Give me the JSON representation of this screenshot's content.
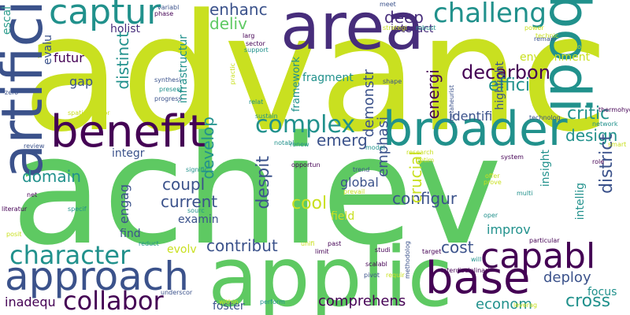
{
  "palette": {
    "background": "#ffffff",
    "lime": "#c9e020",
    "green": "#5ec962",
    "teal": "#21918c",
    "blue": "#3b528b",
    "purple": "#440154",
    "dark_purple": "#472d7b",
    "aqua": "#2c9c8c",
    "yellow": "#e8e419"
  },
  "words": [
    {
      "text": "advanc",
      "color": "#c9e020"
    },
    {
      "text": "achiev",
      "color": "#5ec962"
    },
    {
      "text": "applic",
      "color": "#5ec962"
    },
    {
      "text": "area",
      "color": "#472d7b"
    },
    {
      "text": "artifici",
      "color": "#3b528b"
    },
    {
      "text": "bodi",
      "color": "#21918c"
    },
    {
      "text": "broader",
      "color": "#21918c"
    },
    {
      "text": "benefit",
      "color": "#440154"
    },
    {
      "text": "captur",
      "color": "#21918c"
    },
    {
      "text": "challeng",
      "color": "#21918c"
    },
    {
      "text": "approach",
      "color": "#3b528b"
    },
    {
      "text": "base",
      "color": "#440154"
    },
    {
      "text": "capabl",
      "color": "#440154"
    },
    {
      "text": "character",
      "color": "#21918c"
    },
    {
      "text": "collabor",
      "color": "#440154"
    },
    {
      "text": "complex",
      "color": "#21918c"
    },
    {
      "text": "escal",
      "color": "#2c9c8c"
    },
    {
      "text": "enhanc",
      "color": "#3b528b"
    },
    {
      "text": "deliv",
      "color": "#5ec962"
    },
    {
      "text": "deep",
      "color": "#472d7b"
    },
    {
      "text": "holist",
      "color": "#472d7b"
    },
    {
      "text": "interact",
      "color": "#472d7b"
    },
    {
      "text": "decarbon",
      "color": "#440154"
    },
    {
      "text": "effici",
      "color": "#21918c"
    },
    {
      "text": "environment",
      "color": "#c9e020"
    },
    {
      "text": "distinct",
      "color": "#21918c"
    },
    {
      "text": "fragment",
      "color": "#21918c"
    },
    {
      "text": "gap",
      "color": "#3b528b"
    },
    {
      "text": "futur",
      "color": "#440154"
    },
    {
      "text": "evalu",
      "color": "#3b528b"
    },
    {
      "text": "critic",
      "color": "#21918c"
    },
    {
      "text": "design",
      "color": "#21918c"
    },
    {
      "text": "emerg",
      "color": "#3b528b"
    },
    {
      "text": "develop",
      "color": "#21918c"
    },
    {
      "text": "domain",
      "color": "#21918c"
    },
    {
      "text": "engag",
      "color": "#3b528b"
    },
    {
      "text": "coupl",
      "color": "#3b528b"
    },
    {
      "text": "current",
      "color": "#3b528b"
    },
    {
      "text": "despit",
      "color": "#3b528b"
    },
    {
      "text": "cool",
      "color": "#c9e020"
    },
    {
      "text": "configur",
      "color": "#3b528b"
    },
    {
      "text": "crucial",
      "color": "#c9e020"
    },
    {
      "text": "emphasi",
      "color": "#3b528b"
    },
    {
      "text": "demonstr",
      "color": "#3b528b"
    },
    {
      "text": "energi",
      "color": "#440154"
    },
    {
      "text": "identifi",
      "color": "#3b528b"
    },
    {
      "text": "highlight",
      "color": "#3b528b"
    },
    {
      "text": "district",
      "color": "#3b528b"
    },
    {
      "text": "intellig",
      "color": "#21918c"
    },
    {
      "text": "insight",
      "color": "#21918c"
    },
    {
      "text": "global",
      "color": "#3b528b"
    },
    {
      "text": "integr",
      "color": "#3b528b"
    },
    {
      "text": "examin",
      "color": "#3b528b"
    },
    {
      "text": "find",
      "color": "#3b528b"
    },
    {
      "text": "field",
      "color": "#c9e020"
    },
    {
      "text": "improv",
      "color": "#21918c"
    },
    {
      "text": "cost",
      "color": "#3b528b"
    },
    {
      "text": "contribut",
      "color": "#3b528b"
    },
    {
      "text": "evolv",
      "color": "#c9e020"
    },
    {
      "text": "deploy",
      "color": "#3b528b"
    },
    {
      "text": "focus",
      "color": "#21918c"
    },
    {
      "text": "cross",
      "color": "#21918c"
    },
    {
      "text": "econom",
      "color": "#21918c"
    },
    {
      "text": "comprehens",
      "color": "#440154"
    },
    {
      "text": "inadequ",
      "color": "#440154"
    },
    {
      "text": "foster",
      "color": "#3b528b"
    },
    {
      "text": "infrastructur",
      "color": "#21918c"
    },
    {
      "text": "framework",
      "color": "#21918c"
    },
    {
      "text": "relat",
      "color": "#21918c"
    },
    {
      "text": "sustain",
      "color": "#21918c"
    },
    {
      "text": "renew",
      "color": "#21918c"
    },
    {
      "text": "model",
      "color": "#21918c"
    },
    {
      "text": "research",
      "color": "#c9e020"
    },
    {
      "text": "optim",
      "color": "#c9e020"
    },
    {
      "text": "trend",
      "color": "#3b528b"
    },
    {
      "text": "opportun",
      "color": "#440154"
    },
    {
      "text": "prevail",
      "color": "#c9e020"
    },
    {
      "text": "system",
      "color": "#440154"
    },
    {
      "text": "offer",
      "color": "#c9e020"
    },
    {
      "text": "prove",
      "color": "#c9e020"
    },
    {
      "text": "role",
      "color": "#440154"
    },
    {
      "text": "multi",
      "color": "#21918c"
    },
    {
      "text": "oper",
      "color": "#21918c"
    },
    {
      "text": "remain",
      "color": "#3b528b"
    },
    {
      "text": "variabl",
      "color": "#3b528b"
    },
    {
      "text": "phase",
      "color": "#440154"
    },
    {
      "text": "larg",
      "color": "#440154"
    },
    {
      "text": "sector",
      "color": "#440154"
    },
    {
      "text": "support",
      "color": "#21918c"
    },
    {
      "text": "meet",
      "color": "#3b528b"
    },
    {
      "text": "strategi",
      "color": "#c9e020"
    },
    {
      "text": "robust",
      "color": "#21918c"
    },
    {
      "text": "power",
      "color": "#c9e020"
    },
    {
      "text": "technic",
      "color": "#c9e020"
    },
    {
      "text": "toward",
      "color": "#c9e020"
    },
    {
      "text": "metaheurist",
      "color": "#3b528b"
    },
    {
      "text": "technolog",
      "color": "#3b528b"
    },
    {
      "text": "thermohydraul",
      "color": "#440154"
    },
    {
      "text": "network",
      "color": "#21918c"
    },
    {
      "text": "smart",
      "color": "#c9e020"
    },
    {
      "text": "synthesi",
      "color": "#3b528b"
    },
    {
      "text": "present",
      "color": "#21918c"
    },
    {
      "text": "progress",
      "color": "#3b528b"
    },
    {
      "text": "zero",
      "color": "#3b528b"
    },
    {
      "text": "spatiotempor",
      "color": "#c9e020"
    },
    {
      "text": "shape",
      "color": "#3b528b"
    },
    {
      "text": "practic",
      "color": "#c9e020"
    },
    {
      "text": "review",
      "color": "#3b528b"
    },
    {
      "text": "notabl",
      "color": "#21918c"
    },
    {
      "text": "signific",
      "color": "#21918c"
    },
    {
      "text": "net",
      "color": "#440154"
    },
    {
      "text": "specif",
      "color": "#21918c"
    },
    {
      "text": "sourc",
      "color": "#21918c"
    },
    {
      "text": "literatur",
      "color": "#440154"
    },
    {
      "text": "posit",
      "color": "#c9e020"
    },
    {
      "text": "reduct",
      "color": "#21918c"
    },
    {
      "text": "unifi",
      "color": "#c9e020"
    },
    {
      "text": "past",
      "color": "#440154"
    },
    {
      "text": "limit",
      "color": "#440154"
    },
    {
      "text": "studi",
      "color": "#440154"
    },
    {
      "text": "scalabl",
      "color": "#440154"
    },
    {
      "text": "pivot",
      "color": "#3b528b"
    },
    {
      "text": "requir",
      "color": "#c9e020"
    },
    {
      "text": "methodolog",
      "color": "#3b528b"
    },
    {
      "text": "target",
      "color": "#440154"
    },
    {
      "text": "interdisciplinari",
      "color": "#440154"
    },
    {
      "text": "particular",
      "color": "#440154"
    },
    {
      "text": "will",
      "color": "#21918c"
    },
    {
      "text": "underscor",
      "color": "#3b528b"
    },
    {
      "text": "within",
      "color": "#c9e020"
    },
    {
      "text": "perform",
      "color": "#21918c"
    },
    {
      "text": "leverag",
      "color": "#c9e020"
    }
  ]
}
